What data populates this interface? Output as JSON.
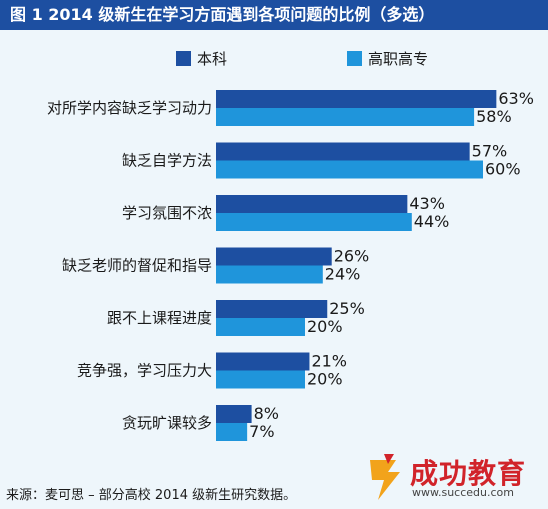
{
  "title": "图 1  2014 级新生在学习方面遇到各项问题的比例（多选）",
  "source_note": "来源：麦可思 – 部分高校 2014 级新生研究数据。",
  "logo": {
    "name": "成功教育",
    "url": "www.succedu.com"
  },
  "colors": {
    "series1": "#1d4fa1",
    "series2": "#1f95db",
    "title_bg": "#1d4fa1",
    "background": "#eef6fb"
  },
  "chart_data": {
    "type": "bar",
    "orientation": "horizontal",
    "title": "图 1  2014 级新生在学习方面遇到各项问题的比例（多选）",
    "categories": [
      "对所学内容缺乏学习动力",
      "缺乏自学方法",
      "学习氛围不浓",
      "缺乏老师的督促和指导",
      "跟不上课程进度",
      "竞争强，学习压力大",
      "贪玩旷课较多"
    ],
    "series": [
      {
        "name": "本科",
        "values": [
          63,
          57,
          43,
          26,
          25,
          21,
          8
        ]
      },
      {
        "name": "高职高专",
        "values": [
          58,
          60,
          44,
          24,
          20,
          20,
          7
        ]
      }
    ],
    "value_suffix": "%",
    "xlim": [
      0,
      63
    ],
    "legend_position": "top",
    "grid": false
  }
}
